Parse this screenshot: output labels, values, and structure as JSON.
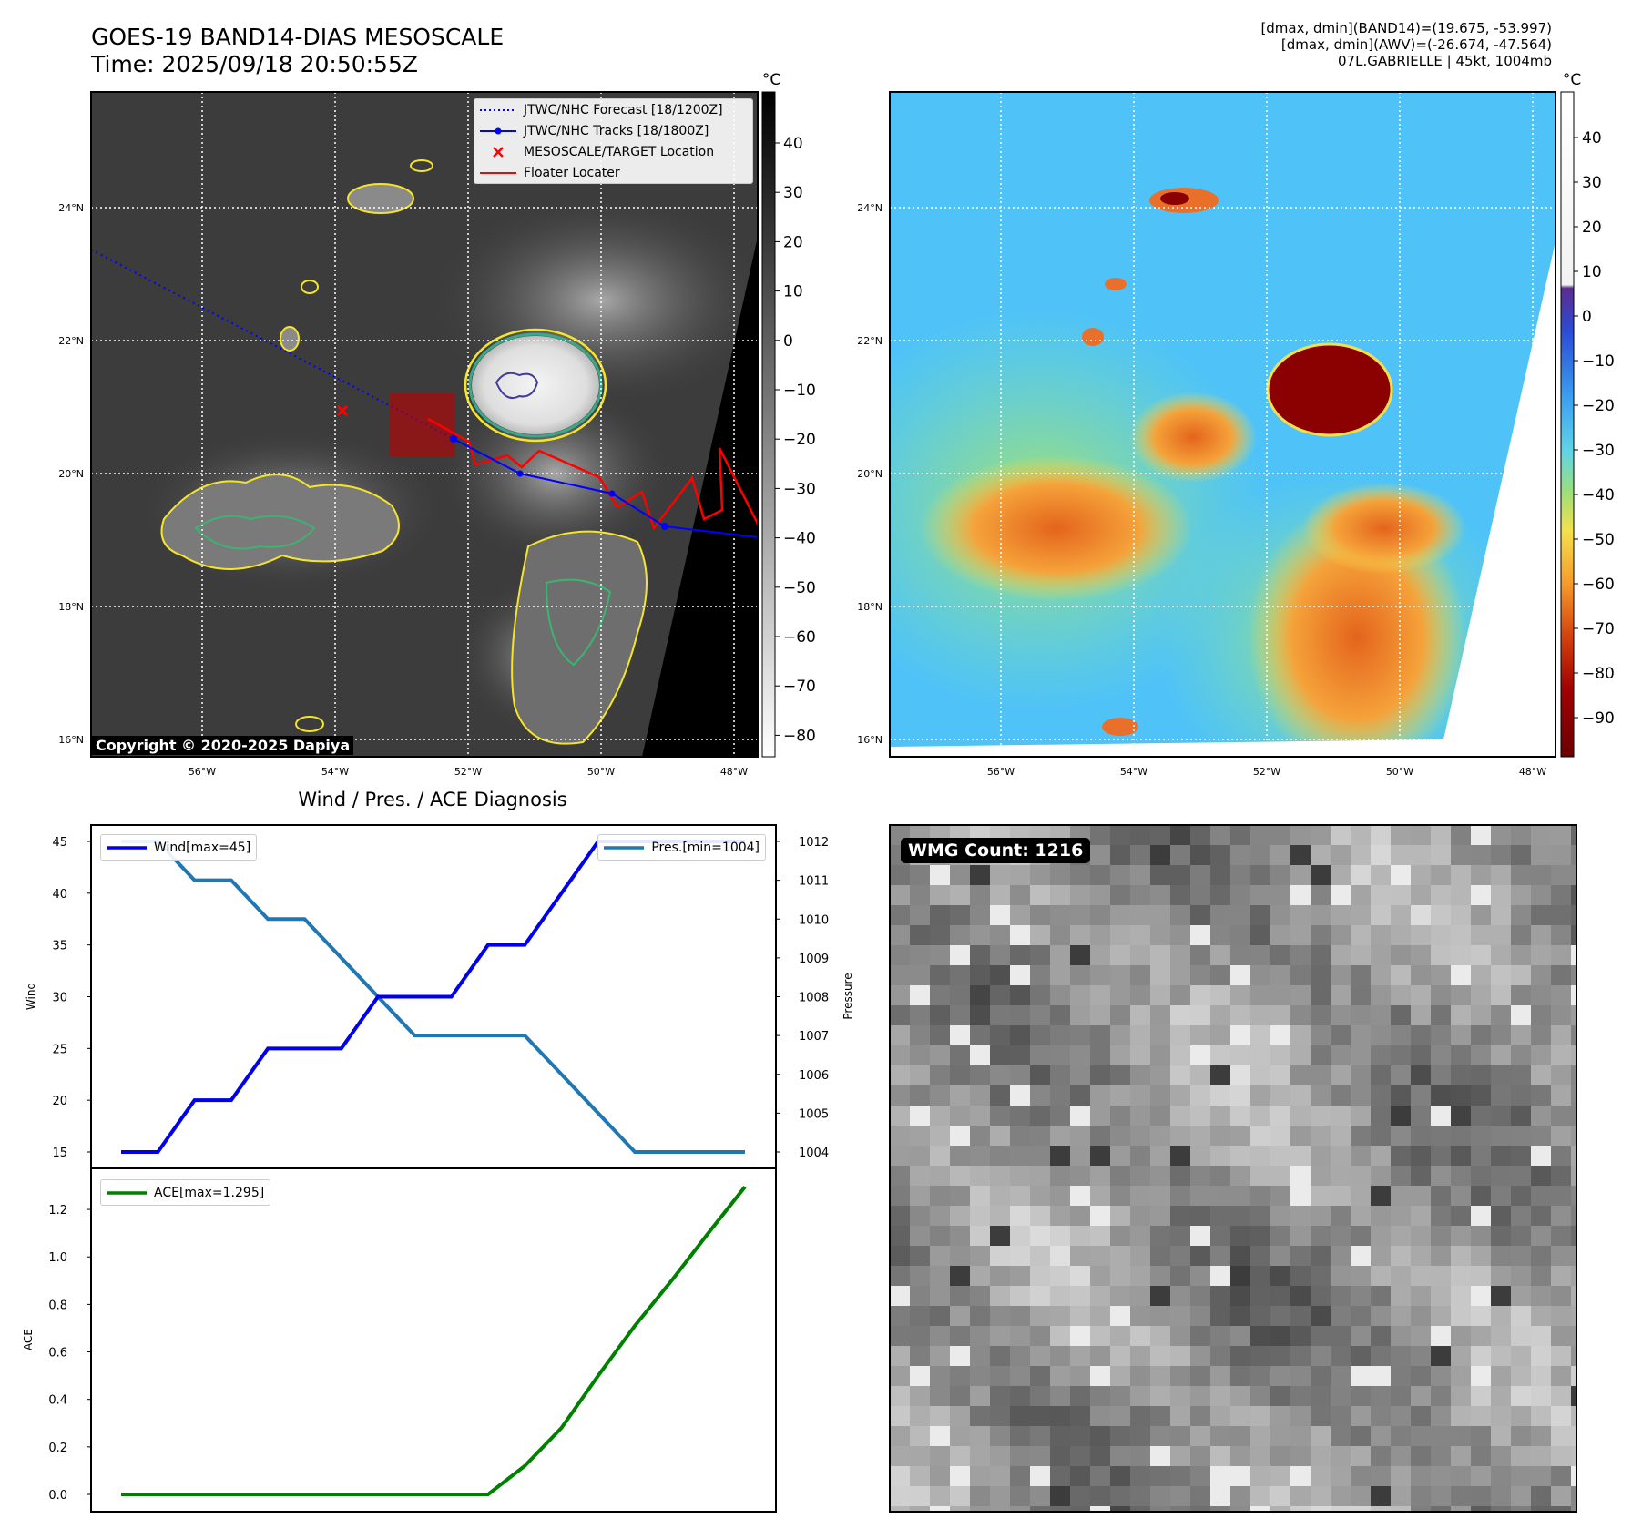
{
  "header": {
    "title_line1": "GOES-19 BAND14-DIAS MESOSCALE",
    "title_line2": "Time: 2025/09/18 20:50:55Z",
    "info_line1": "[dmax, dmin](BAND14)=(19.675, -53.997)",
    "info_line2": "[dmax, dmin](AWV)=(-26.674, -47.564)",
    "info_line3": "07L.GABRIELLE | 45kt, 1004mb"
  },
  "ir_map": {
    "lon_ticks": [
      "56°W",
      "54°W",
      "52°W",
      "50°W",
      "48°W"
    ],
    "lat_ticks": [
      "24°N",
      "22°N",
      "20°N",
      "18°N",
      "16°N"
    ],
    "copyright": "Copyright © 2020-2025 Dapiya",
    "legend": [
      {
        "label": "JTWC/NHC Forecast [18/1200Z]",
        "color": "#0000ff",
        "style": "dotted"
      },
      {
        "label": "JTWC/NHC Tracks [18/1800Z]",
        "color": "#0000ff",
        "style": "solid-marker"
      },
      {
        "label": "MESOSCALE/TARGET Location",
        "color": "#ff0000",
        "style": "x-marker"
      },
      {
        "label": "Floater Locater",
        "color": "#ff0000",
        "style": "solid"
      }
    ],
    "colorbar_unit": "°C",
    "colorbar_ticks": [
      "40",
      "30",
      "20",
      "10",
      "0",
      "−10",
      "−20",
      "−30",
      "−40",
      "−50",
      "−60",
      "−70",
      "−80"
    ],
    "colors": {
      "background": "#3c3c3c",
      "cloud": "#e6e6e6",
      "contour_yellow": "#f5e52a",
      "contour_green": "#3cb371",
      "contour_teal": "#2a8c8c",
      "contour_purple": "#403a9a"
    }
  },
  "awv_map": {
    "lon_ticks": [
      "56°W",
      "54°W",
      "52°W",
      "50°W",
      "48°W"
    ],
    "lat_ticks": [
      "24°N",
      "22°N",
      "20°N",
      "18°N",
      "16°N"
    ],
    "colorbar_unit": "°C",
    "colorbar_ticks": [
      "40",
      "30",
      "20",
      "10",
      "0",
      "−10",
      "−20",
      "−30",
      "−40",
      "−50",
      "−60",
      "−70",
      "−80",
      "−90"
    ],
    "colors": {
      "clear": "#4fc3f7",
      "moist": "#7ee07e",
      "dry": "#f5e04c",
      "very_dry": "#e8702a",
      "core": "#8b0000"
    }
  },
  "diagnosis": {
    "title": "Wind / Pres. / ACE Diagnosis",
    "wind_ylabel": "Wind",
    "pres_ylabel": "Pressure",
    "ace_ylabel": "ACE",
    "wind_legend": "Wind[max=45]",
    "pres_legend": "Pres.[min=1004]",
    "ace_legend": "ACE[max=1.295]",
    "wind_ticks": [
      "45",
      "40",
      "35",
      "30",
      "25",
      "20",
      "15"
    ],
    "pres_ticks": [
      "1012",
      "1011",
      "1010",
      "1009",
      "1008",
      "1007",
      "1006",
      "1005",
      "1004"
    ],
    "ace_ticks": [
      "1.2",
      "1.0",
      "0.8",
      "0.6",
      "0.4",
      "0.2",
      "0.0"
    ]
  },
  "wmg": {
    "label": "WMG Count: 1216"
  },
  "chart_data": [
    {
      "type": "line",
      "title": "Wind / Pres. / ACE Diagnosis",
      "x": [
        0,
        1,
        2,
        3,
        4,
        5,
        6,
        7,
        8,
        9,
        10,
        11,
        12,
        13,
        14,
        15,
        16,
        17
      ],
      "series": [
        {
          "name": "Wind[max=45]",
          "color": "#0000ee",
          "axis": "left",
          "values": [
            15,
            15,
            20,
            20,
            25,
            25,
            25,
            30,
            30,
            30,
            35,
            35,
            40,
            45,
            45,
            45,
            45,
            45
          ]
        },
        {
          "name": "Pres.[min=1004]",
          "color": "#1f77b4",
          "axis": "right",
          "values": [
            1012,
            1012,
            1011,
            1011,
            1010,
            1010,
            1009,
            1008,
            1007,
            1007,
            1007,
            1007,
            1006,
            1005,
            1004,
            1004,
            1004,
            1004
          ]
        }
      ],
      "ylabel": "Wind",
      "y2label": "Pressure",
      "ylim": [
        15,
        45
      ],
      "y2lim": [
        1004,
        1012
      ]
    },
    {
      "type": "line",
      "x": [
        0,
        1,
        2,
        3,
        4,
        5,
        6,
        7,
        8,
        9,
        10,
        11,
        12,
        13,
        14,
        15,
        16,
        17
      ],
      "series": [
        {
          "name": "ACE[max=1.295]",
          "color": "#008000",
          "values": [
            0,
            0,
            0,
            0,
            0,
            0,
            0,
            0,
            0,
            0,
            0,
            0.12,
            0.28,
            0.5,
            0.71,
            0.9,
            1.1,
            1.295
          ]
        }
      ],
      "ylabel": "ACE",
      "ylim": [
        0,
        1.3
      ]
    }
  ]
}
